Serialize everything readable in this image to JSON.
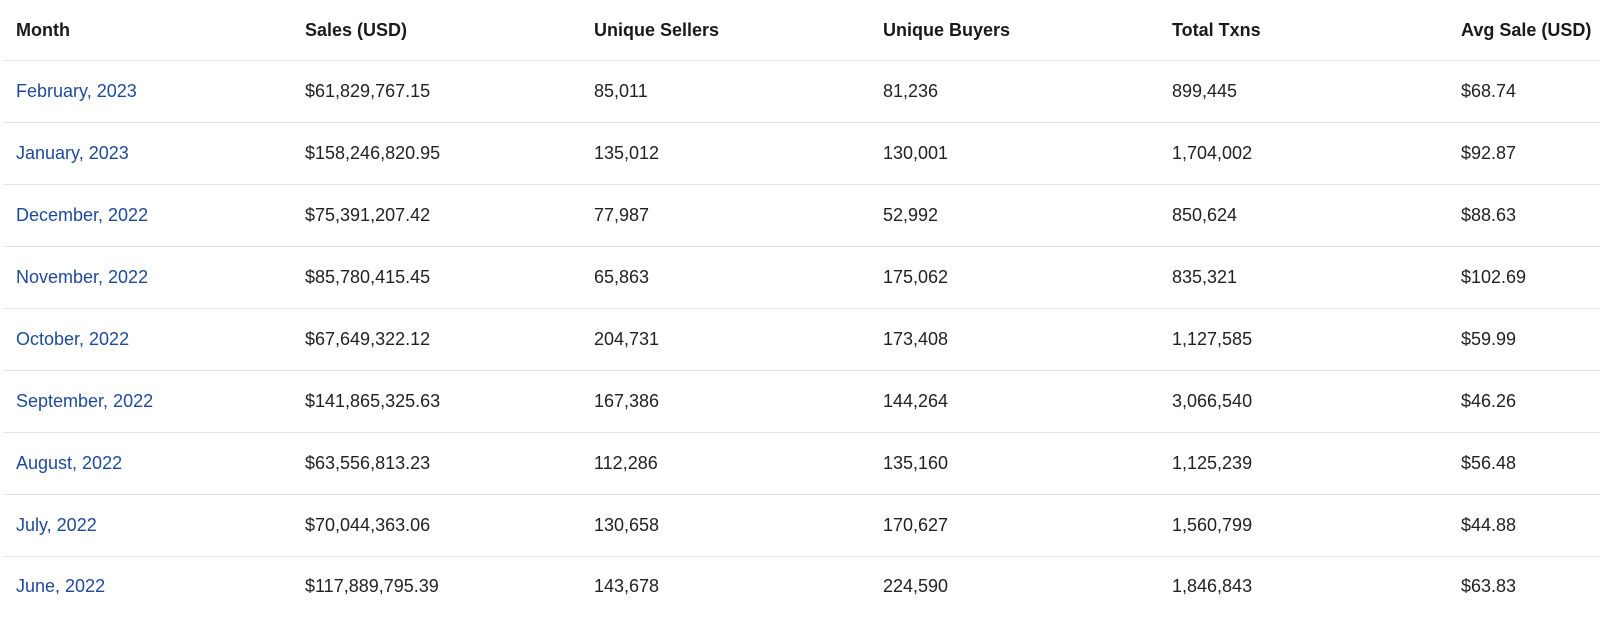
{
  "table": {
    "columns": [
      "Month",
      "Sales (USD)",
      "Unique Sellers",
      "Unique Buyers",
      "Total Txns",
      "Avg Sale (USD)"
    ],
    "rows": [
      [
        "February, 2023",
        "$61,829,767.15",
        "85,011",
        "81,236",
        "899,445",
        "$68.74"
      ],
      [
        "January, 2023",
        "$158,246,820.95",
        "135,012",
        "130,001",
        "1,704,002",
        "$92.87"
      ],
      [
        "December, 2022",
        "$75,391,207.42",
        "77,987",
        "52,992",
        "850,624",
        "$88.63"
      ],
      [
        "November, 2022",
        "$85,780,415.45",
        "65,863",
        "175,062",
        "835,321",
        "$102.69"
      ],
      [
        "October, 2022",
        "$67,649,322.12",
        "204,731",
        "173,408",
        "1,127,585",
        "$59.99"
      ],
      [
        "September, 2022",
        "$141,865,325.63",
        "167,386",
        "144,264",
        "3,066,540",
        "$46.26"
      ],
      [
        "August, 2022",
        "$63,556,813.23",
        "112,286",
        "135,160",
        "1,125,239",
        "$56.48"
      ],
      [
        "July, 2022",
        "$70,044,363.06",
        "130,658",
        "170,627",
        "1,560,799",
        "$44.88"
      ],
      [
        "June, 2022",
        "$117,889,795.39",
        "143,678",
        "224,590",
        "1,846,843",
        "$63.83"
      ]
    ]
  },
  "colors": {
    "link": "#1f4a9a",
    "text": "#222222",
    "divider": "#e2e2e2"
  }
}
